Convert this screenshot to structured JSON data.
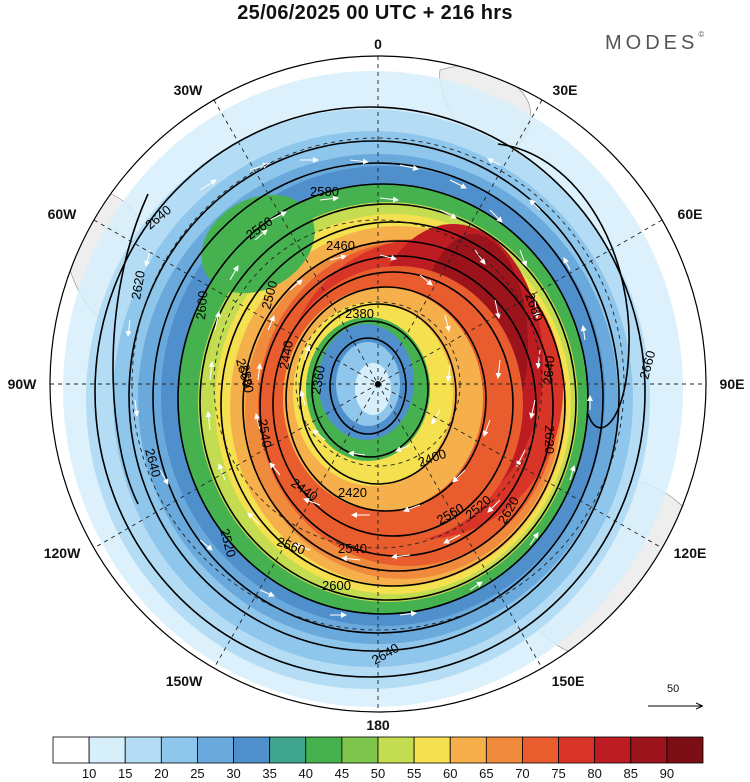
{
  "header": {
    "title": "25/06/2025  00 UTC  + 216 hrs",
    "brand": "MODES",
    "brand_mark": "©"
  },
  "longitude_labels": {
    "0": "0",
    "30E": "30E",
    "60E": "60E",
    "90E": "90E",
    "120E": "120E",
    "150E": "150E",
    "180": "180",
    "150W": "150W",
    "120W": "120W",
    "90W": "90W",
    "60W": "60W",
    "30W": "30W"
  },
  "wind_scale": {
    "label": "50"
  },
  "colorbar": {
    "ticks": [
      "10",
      "15",
      "20",
      "25",
      "30",
      "35",
      "40",
      "45",
      "50",
      "55",
      "60",
      "65",
      "70",
      "75",
      "80",
      "85",
      "90"
    ],
    "colors": [
      "#ffffff",
      "#d6effa",
      "#b4ddf5",
      "#8fc6ec",
      "#69a9dc",
      "#4f8fcc",
      "#3fa58c",
      "#46b24f",
      "#7ec54d",
      "#c4dc4f",
      "#f5e04f",
      "#f5b04b",
      "#f08a3c",
      "#e85c2e",
      "#d83427",
      "#bd1d22",
      "#9c141b",
      "#7a0e14"
    ]
  },
  "contours": {
    "labels": [
      "2580",
      "2560",
      "2640",
      "2620",
      "2600",
      "2580",
      "2540",
      "2560",
      "2500",
      "2460",
      "2440",
      "2380",
      "2360",
      "2520",
      "2660",
      "2660",
      "2640",
      "2620",
      "2440",
      "2400",
      "2420",
      "2560",
      "2540",
      "2640",
      "2520",
      "2620",
      "2600",
      "2640",
      "2560"
    ],
    "colors": {
      "line": "#000000",
      "vectors": "#ffffff",
      "land": "#eeeeee"
    }
  }
}
